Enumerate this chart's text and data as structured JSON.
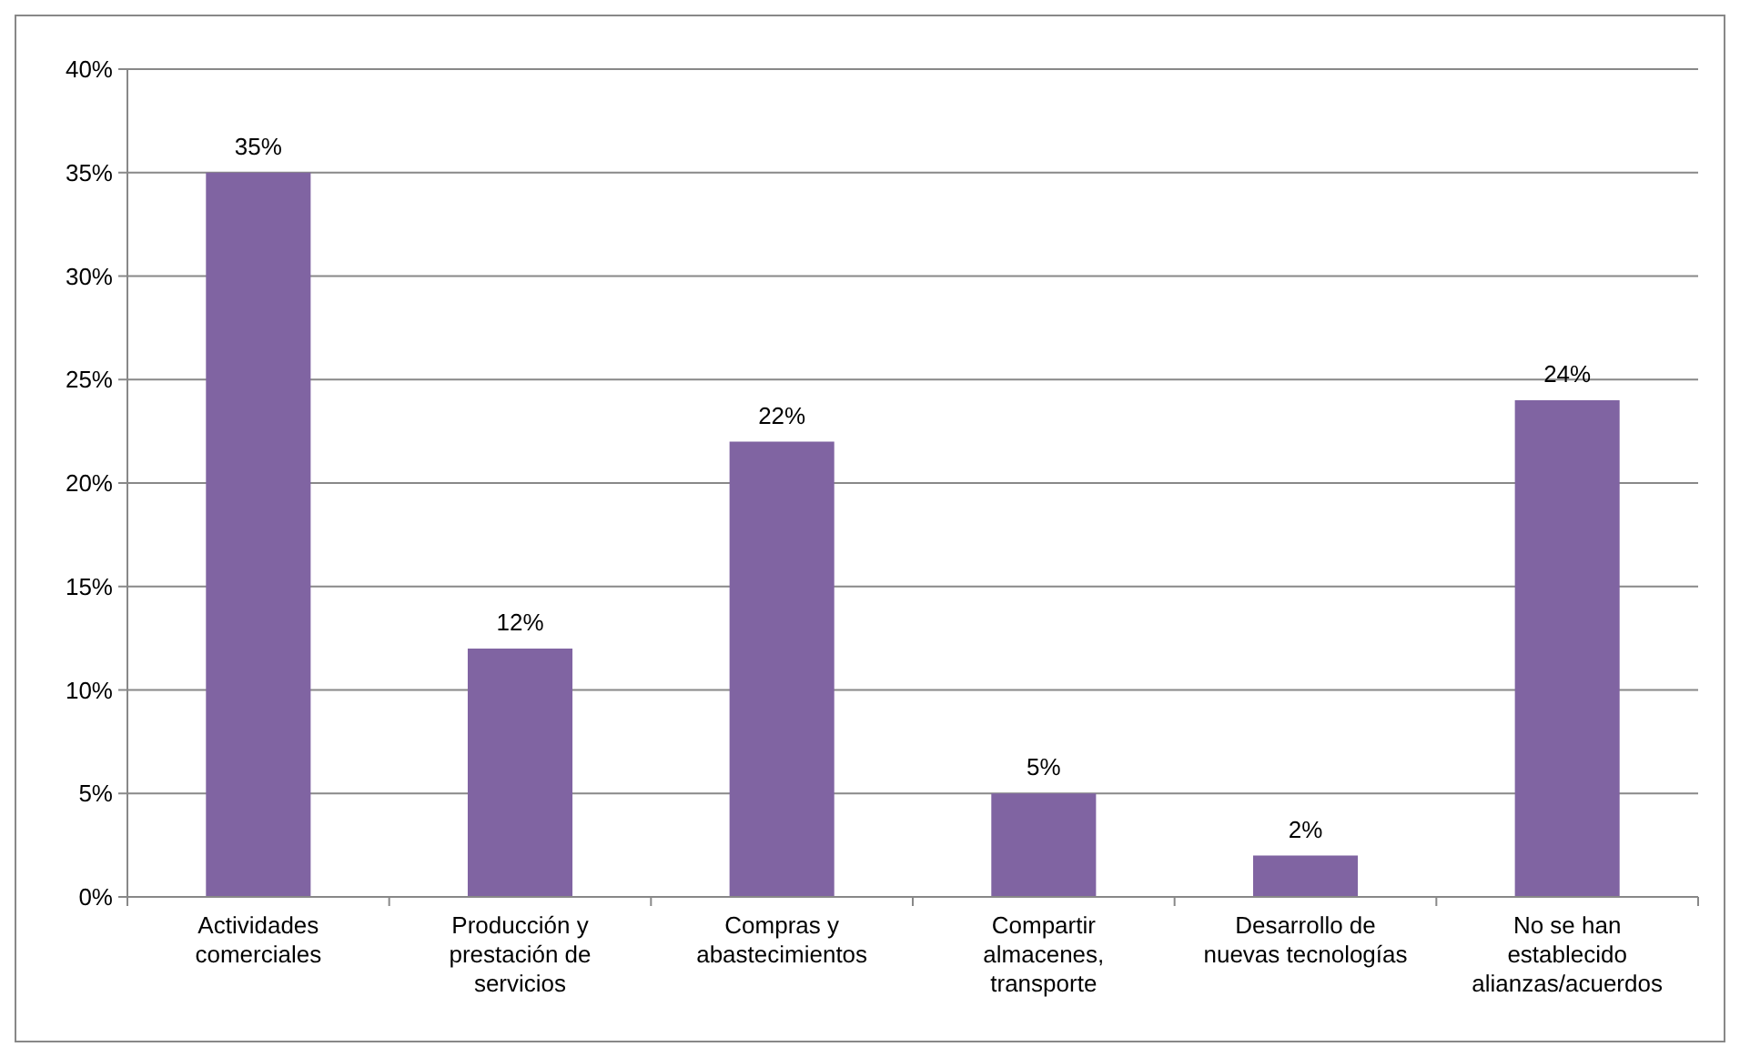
{
  "chart_data": {
    "type": "bar",
    "categories": [
      "Actividades comerciales",
      "Producción y prestación de servicios",
      "Compras y abastecimientos",
      "Compartir almacenes, transporte",
      "Desarrollo de nuevas tecnologías",
      "No se han establecido alianzas/acuerdos"
    ],
    "values": [
      0.35,
      0.12,
      0.22,
      0.05,
      0.02,
      0.24
    ],
    "color": "#8064a2",
    "value_labels": [
      "35%",
      "12%",
      "22%",
      "5%",
      "2%",
      "24%"
    ],
    "ylim": [
      0,
      0.4
    ],
    "yticks": [
      {
        "value": 0,
        "label": "0%"
      },
      {
        "value": 0.05,
        "label": "5%"
      },
      {
        "value": 0.1,
        "label": "10%"
      },
      {
        "value": 0.15,
        "label": "15%"
      },
      {
        "value": 0.2,
        "label": "20%"
      },
      {
        "value": 0.25,
        "label": "25%"
      },
      {
        "value": 0.3,
        "label": "30%"
      },
      {
        "value": 0.35,
        "label": "35%"
      },
      {
        "value": 0.4,
        "label": "40%"
      }
    ],
    "grid": "y"
  }
}
